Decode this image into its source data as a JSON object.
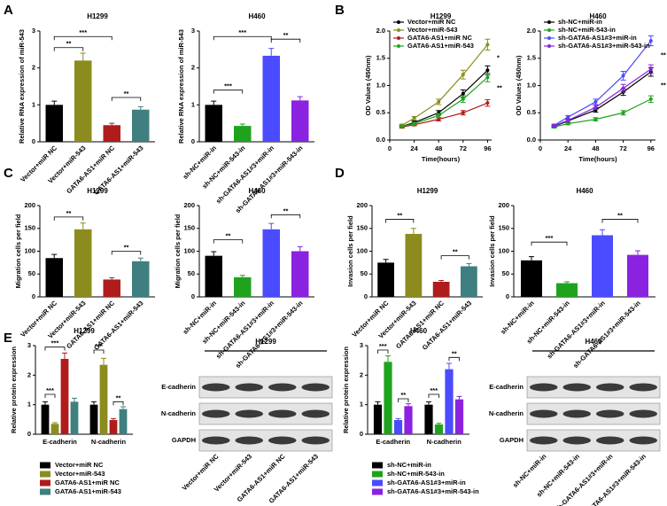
{
  "panel_labels": [
    "A",
    "B",
    "C",
    "D",
    "E"
  ],
  "blots": [
    {
      "title": "H1299",
      "rows": [
        "E-cadherin",
        "N-cadherin",
        "GAPDH"
      ],
      "lanes": [
        "Vector+miR NC",
        "Vector+miR-543",
        "GATA6-AS1+miR NC",
        "GATA6-AS1+miR-543"
      ]
    },
    {
      "title": "H460",
      "rows": [
        "E-cadherin",
        "N-cadherin",
        "GAPDH"
      ],
      "lanes": [
        "sh-NC+miR-in",
        "sh-NC+miR-543-in",
        "sh-GATA6-AS1#3+miR-in",
        "sh-GATA6-AS1#3+miR-543-in"
      ]
    }
  ],
  "chart_data": [
    {
      "type": "bar",
      "title": "H1299",
      "y_label": "Relative RNA expression of miR-543",
      "categories": [
        "Vector+miR NC",
        "Vector+miR-543",
        "GATA6-AS1+miR NC",
        "GATA6-AS1+miR-543"
      ],
      "values": [
        1.0,
        2.2,
        0.45,
        0.87
      ],
      "errors": [
        0.1,
        0.2,
        0.05,
        0.08
      ],
      "colors": [
        "#000000",
        "#8c8c1e",
        "#b01c1c",
        "#3f7f7f"
      ],
      "ylim": [
        0,
        3
      ],
      "yticks": [
        0,
        1,
        2,
        3
      ],
      "annotations": [
        "***",
        "**",
        "**"
      ]
    },
    {
      "type": "bar",
      "title": "H460",
      "y_label": "Relative RNA expression of miR-543",
      "categories": [
        "sh-NC+miR-in",
        "sh-NC+miR-543-in",
        "sh-GATA6-AS1#3+miR-in",
        "sh-GATA6-AS1#3+miR-543-in"
      ],
      "values": [
        1.0,
        0.43,
        2.33,
        1.12
      ],
      "errors": [
        0.1,
        0.05,
        0.2,
        0.1
      ],
      "colors": [
        "#000000",
        "#1fa31f",
        "#4b4bff",
        "#8a22e0"
      ],
      "ylim": [
        0,
        3
      ],
      "yticks": [
        0,
        1,
        2,
        3
      ],
      "annotations": [
        "***",
        "***",
        "**"
      ]
    },
    {
      "type": "line",
      "title": "H1299",
      "x_label": "Time(hours)",
      "y_label": "OD Values (450nm)",
      "x": [
        12,
        24,
        48,
        72,
        96
      ],
      "xlim": [
        0,
        100
      ],
      "xticks": [
        0,
        24,
        48,
        72,
        96
      ],
      "ylim": [
        0,
        2
      ],
      "yticks": [
        {
          "value": 0,
          "label": "0.0"
        },
        0.5,
        {
          "value": 1,
          "label": "1.0"
        },
        1.5,
        {
          "value": 2,
          "label": "2.0"
        }
      ],
      "series": [
        {
          "name": "Vector+miR NC",
          "color": "#000000",
          "values": [
            0.25,
            0.32,
            0.5,
            0.85,
            1.28
          ],
          "errors": [
            0.02,
            0.03,
            0.04,
            0.07,
            0.08
          ]
        },
        {
          "name": "Vector+miR-543",
          "color": "#8c8c1e",
          "values": [
            0.27,
            0.4,
            0.7,
            1.2,
            1.75
          ],
          "errors": [
            0.02,
            0.03,
            0.05,
            0.08,
            0.1
          ]
        },
        {
          "name": "GATA6-AS1+miR NC",
          "color": "#b01c1c",
          "values": [
            0.24,
            0.28,
            0.38,
            0.5,
            0.68
          ],
          "errors": [
            0.02,
            0.02,
            0.03,
            0.04,
            0.06
          ]
        },
        {
          "name": "GATA6-AS1+miR-543",
          "color": "#1fa31f",
          "values": [
            0.25,
            0.3,
            0.45,
            0.75,
            1.15
          ],
          "errors": [
            0.02,
            0.03,
            0.04,
            0.06,
            0.08
          ]
        }
      ],
      "annotations": [
        "*",
        "**"
      ]
    },
    {
      "type": "line",
      "title": "H460",
      "x_label": "Time(hours)",
      "y_label": "OD Values (450nm)",
      "x": [
        12,
        24,
        48,
        72,
        96
      ],
      "xlim": [
        0,
        100
      ],
      "xticks": [
        0,
        24,
        48,
        72,
        96
      ],
      "ylim": [
        0,
        2
      ],
      "yticks": [
        {
          "value": 0,
          "label": "0.0"
        },
        0.5,
        {
          "value": 1,
          "label": "1.0"
        },
        1.5,
        {
          "value": 2,
          "label": "2.0"
        }
      ],
      "series": [
        {
          "name": "sh-NC+miR-in",
          "color": "#000000",
          "values": [
            0.25,
            0.35,
            0.55,
            0.88,
            1.25
          ],
          "errors": [
            0.02,
            0.03,
            0.04,
            0.06,
            0.08
          ]
        },
        {
          "name": "sh-NC+miR-543-in",
          "color": "#1fa31f",
          "values": [
            0.24,
            0.3,
            0.38,
            0.5,
            0.75
          ],
          "errors": [
            0.02,
            0.02,
            0.03,
            0.04,
            0.06
          ]
        },
        {
          "name": "sh-GATA6-AS1#3+miR-in",
          "color": "#4b4bff",
          "values": [
            0.27,
            0.42,
            0.7,
            1.18,
            1.82
          ],
          "errors": [
            0.02,
            0.03,
            0.05,
            0.08,
            0.09
          ]
        },
        {
          "name": "sh-GATA6-AS1#3+miR-543-in",
          "color": "#8a22e0",
          "values": [
            0.26,
            0.36,
            0.6,
            0.95,
            1.3
          ],
          "errors": [
            0.02,
            0.03,
            0.04,
            0.07,
            0.08
          ]
        }
      ],
      "annotations": [
        "**",
        "**"
      ]
    },
    {
      "type": "bar",
      "title": "H1299",
      "y_label": "Migration cells per field",
      "categories": [
        "Vector+miR NC",
        "Vector+miR-543",
        "GATA6-AS1+miR NC",
        "GATA6-AS1+miR-543"
      ],
      "values": [
        85,
        148,
        38,
        78
      ],
      "errors": [
        8,
        14,
        4,
        7
      ],
      "colors": [
        "#000000",
        "#8c8c1e",
        "#b01c1c",
        "#3f7f7f"
      ],
      "ylim": [
        0,
        200
      ],
      "yticks": [
        0,
        50,
        100,
        150,
        200
      ],
      "annotations": [
        "**",
        "**"
      ]
    },
    {
      "type": "bar",
      "title": "H460",
      "y_label": "Migration cells per field",
      "categories": [
        "sh-NC+miR-in",
        "sh-NC+miR-543-in",
        "sh-GATA6-AS1#3+miR-in",
        "sh-GATA6-AS1#3+miR-543-in"
      ],
      "values": [
        90,
        43,
        148,
        100
      ],
      "errors": [
        9,
        4,
        13,
        10
      ],
      "colors": [
        "#000000",
        "#1fa31f",
        "#4b4bff",
        "#8a22e0"
      ],
      "ylim": [
        0,
        200
      ],
      "yticks": [
        0,
        50,
        100,
        150,
        200
      ],
      "annotations": [
        "**",
        "**"
      ]
    },
    {
      "type": "bar",
      "title": "H1299",
      "y_label": "Invasion cells per field",
      "categories": [
        "Vector+miR NC",
        "Vector+miR-543",
        "GATA6-AS1+miR NC",
        "GATA6-AS1+miR-543"
      ],
      "values": [
        75,
        138,
        33,
        67
      ],
      "errors": [
        7,
        12,
        3,
        6
      ],
      "colors": [
        "#000000",
        "#8c8c1e",
        "#b01c1c",
        "#3f7f7f"
      ],
      "ylim": [
        0,
        200
      ],
      "yticks": [
        0,
        50,
        100,
        150,
        200
      ],
      "annotations": [
        "**",
        "**"
      ]
    },
    {
      "type": "bar",
      "title": "H460",
      "y_label": "Invasion cells per field",
      "categories": [
        "sh-NC+miR-in",
        "sh-NC+miR-543-in",
        "sh-GATA6-AS1#3+miR-in",
        "sh-GATA6-AS1#3+miR-543-in"
      ],
      "values": [
        80,
        30,
        135,
        92
      ],
      "errors": [
        8,
        3,
        12,
        9
      ],
      "colors": [
        "#000000",
        "#1fa31f",
        "#4b4bff",
        "#8a22e0"
      ],
      "ylim": [
        0,
        200
      ],
      "yticks": [
        0,
        50,
        100,
        150,
        200
      ],
      "annotations": [
        "***",
        "**"
      ]
    },
    {
      "type": "grouped_bar",
      "title": "H1299",
      "y_label": "Relative protein expression",
      "categories": [
        "E-cadherin",
        "N-cadherin"
      ],
      "ylim": [
        0,
        3
      ],
      "yticks": [
        0,
        1,
        2,
        3
      ],
      "legend": "bottom",
      "series": [
        {
          "name": "Vector+miR NC",
          "color": "#000000",
          "values": [
            1.0,
            1.0
          ],
          "errors": [
            0.1,
            0.1
          ]
        },
        {
          "name": "Vector+miR-543",
          "color": "#8c8c1e",
          "values": [
            0.35,
            2.35
          ],
          "errors": [
            0.04,
            0.22
          ]
        },
        {
          "name": "GATA6-AS1+miR NC",
          "color": "#b01c1c",
          "values": [
            2.55,
            0.48
          ],
          "errors": [
            0.2,
            0.05
          ]
        },
        {
          "name": "GATA6-AS1+miR-543",
          "color": "#3f7f7f",
          "values": [
            1.1,
            0.85
          ],
          "errors": [
            0.12,
            0.08
          ]
        }
      ],
      "annotations": [
        "***",
        "***",
        "***",
        "**"
      ]
    },
    {
      "type": "grouped_bar",
      "title": "H460",
      "y_label": "Relative protein expression",
      "categories": [
        "E-cadherin",
        "N-cadherin"
      ],
      "ylim": [
        0,
        3
      ],
      "yticks": [
        0,
        1,
        2,
        3
      ],
      "legend": "bottom",
      "series": [
        {
          "name": "sh-NC+miR-in",
          "color": "#000000",
          "values": [
            1.0,
            1.0
          ],
          "errors": [
            0.1,
            0.1
          ]
        },
        {
          "name": "sh-NC+miR-543-in",
          "color": "#1fa31f",
          "values": [
            2.45,
            0.33
          ],
          "errors": [
            0.2,
            0.04
          ]
        },
        {
          "name": "sh-GATA6-AS1#3+miR-in",
          "color": "#4b4bff",
          "values": [
            0.48,
            2.2
          ],
          "errors": [
            0.05,
            0.2
          ]
        },
        {
          "name": "sh-GATA6-AS1#3+miR-543-in",
          "color": "#8a22e0",
          "values": [
            0.95,
            1.18
          ],
          "errors": [
            0.08,
            0.1
          ]
        }
      ],
      "annotations": [
        "***",
        "**",
        "***",
        "**"
      ]
    }
  ]
}
